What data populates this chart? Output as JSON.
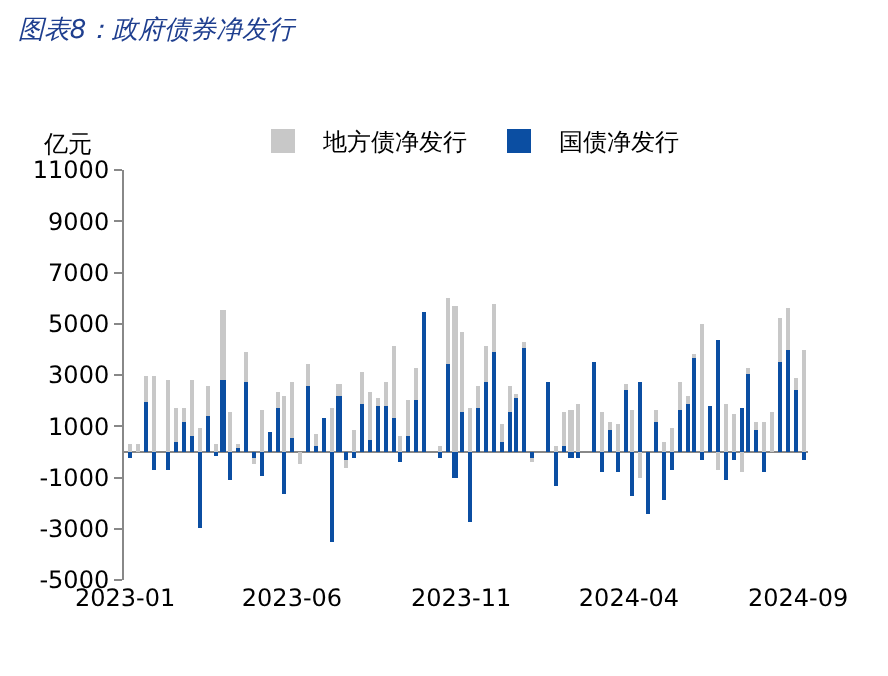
{
  "chart_data": {
    "type": "bar",
    "title": "图表8：政府债券净发行",
    "ylabel": "亿元",
    "x": [
      "2023-01-06",
      "2023-01-13",
      "2023-01-20",
      "2023-01-27",
      "2023-02-03",
      "2023-02-10",
      "2023-02-17",
      "2023-02-24",
      "2023-03-03",
      "2023-03-10",
      "2023-03-17",
      "2023-03-24",
      "2023-03-31",
      "2023-04-07",
      "2023-04-14",
      "2023-04-21",
      "2023-04-28",
      "2023-05-05",
      "2023-05-12",
      "2023-05-19",
      "2023-05-26",
      "2023-06-02",
      "2023-06-09",
      "2023-06-16",
      "2023-06-23",
      "2023-06-30",
      "2023-07-07",
      "2023-07-14",
      "2023-07-21",
      "2023-07-28",
      "2023-08-04",
      "2023-08-11",
      "2023-08-18",
      "2023-08-25",
      "2023-09-01",
      "2023-09-08",
      "2023-09-15",
      "2023-09-22",
      "2023-09-29",
      "2023-10-06",
      "2023-10-13",
      "2023-10-20",
      "2023-10-27",
      "2023-11-03",
      "2023-11-10",
      "2023-11-17",
      "2023-11-24",
      "2023-12-01",
      "2023-12-08",
      "2023-12-15",
      "2023-12-22",
      "2023-12-29",
      "2024-01-05",
      "2024-01-12",
      "2024-01-19",
      "2024-01-26",
      "2024-02-02",
      "2024-02-09",
      "2024-02-16",
      "2024-02-23",
      "2024-03-01",
      "2024-03-08",
      "2024-03-15",
      "2024-03-22",
      "2024-03-29",
      "2024-04-05",
      "2024-04-12",
      "2024-04-19",
      "2024-04-26",
      "2024-05-03",
      "2024-05-10",
      "2024-05-17",
      "2024-05-24",
      "2024-05-31",
      "2024-06-07",
      "2024-06-14",
      "2024-06-21",
      "2024-06-28",
      "2024-07-05",
      "2024-07-12",
      "2024-07-19",
      "2024-07-26",
      "2024-08-02",
      "2024-08-09",
      "2024-08-16",
      "2024-08-23",
      "2024-08-30",
      "2024-09-06"
    ],
    "xlim": [
      "2022-12-31",
      "2024-09-10"
    ],
    "xticks": [
      "2023-01",
      "2023-06",
      "2023-11",
      "2024-04",
      "2024-09"
    ],
    "ylim": [
      -5000,
      11000
    ],
    "yticks": [
      -5000,
      -3000,
      -1000,
      1000,
      3000,
      5000,
      7000,
      9000,
      11000
    ],
    "series": [
      {
        "name": "国债净发行",
        "color": "#0b4ea2",
        "values": [
          -250,
          null,
          1950,
          -700,
          null,
          -700,
          400,
          1150,
          650,
          -3000,
          1400,
          -150,
          2800,
          -1100,
          200,
          2700,
          -250,
          -950,
          800,
          1750,
          -1650,
          550,
          null,
          2600,
          250,
          1350,
          -3500,
          2200,
          -300,
          -200,
          1850,
          500,
          1800,
          1800,
          1350,
          -400,
          650,
          2000,
          5450,
          null,
          -200,
          3450,
          -1050,
          1550,
          -2750,
          1750,
          2750,
          3900,
          400,
          1550,
          2150,
          4050,
          -250,
          null,
          2750,
          -1300,
          200,
          -200,
          -200,
          null,
          3500,
          -800,
          850,
          -800,
          2400,
          -1700,
          2700,
          -2400,
          1150,
          -1850,
          -700,
          1600,
          1900,
          3700,
          -300,
          1800,
          4350,
          -1100,
          -300,
          1750,
          3050,
          850,
          -800,
          null,
          3500,
          4000,
          2450,
          -300
        ]
      },
      {
        "name": "地方债净发行",
        "color": "#c8c8c8",
        "values": [
          300,
          300,
          1050,
          3000,
          null,
          2800,
          1350,
          600,
          2150,
          900,
          1200,
          300,
          2700,
          1550,
          100,
          1200,
          -200,
          1600,
          null,
          550,
          2200,
          2200,
          -450,
          800,
          450,
          null,
          1700,
          450,
          -300,
          850,
          1250,
          1850,
          300,
          900,
          2800,
          650,
          1400,
          1250,
          null,
          null,
          200,
          2550,
          5700,
          3100,
          1700,
          800,
          1350,
          1900,
          650,
          1000,
          50,
          250,
          -150,
          null,
          null,
          200,
          1350,
          1650,
          1850,
          null,
          null,
          1550,
          300,
          1100,
          250,
          1600,
          -1000,
          null,
          450,
          350,
          900,
          1100,
          300,
          100,
          5000,
          null,
          -700,
          1850,
          1450,
          -800,
          200,
          300,
          1150,
          1550,
          1700,
          1650,
          450,
          3950
        ]
      }
    ],
    "stacked": true,
    "legend": "top",
    "grid": false
  }
}
